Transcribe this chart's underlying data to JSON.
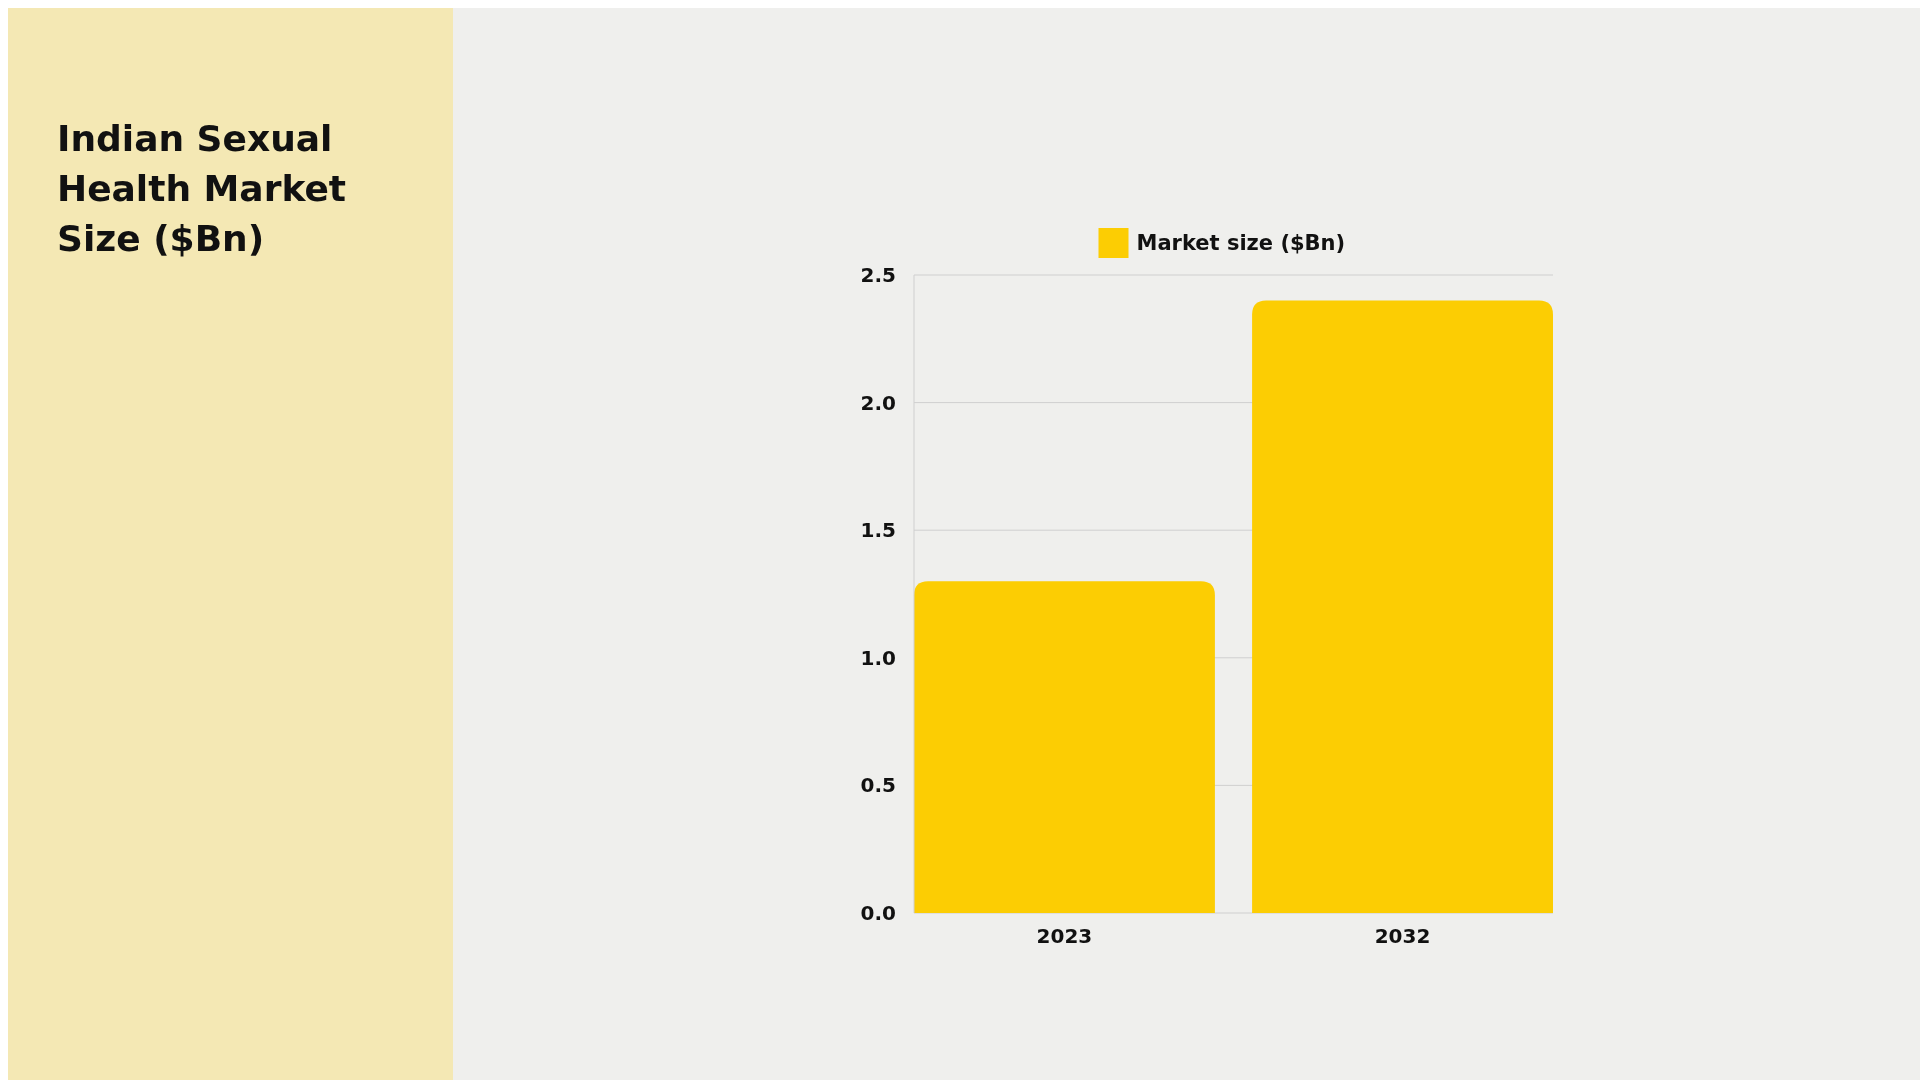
{
  "chart_data": {
    "type": "bar",
    "title": "Indian Sexual Health Market Size ($Bn)",
    "categories": [
      "2023",
      "2032"
    ],
    "series": [
      {
        "name": "Market size ($Bn)",
        "color": "#fccd03",
        "values": [
          1.3,
          2.4
        ]
      }
    ],
    "ylim": [
      0,
      2.5
    ],
    "yticks": [
      {
        "value": 0,
        "label": "0.0"
      },
      {
        "value": 0.5,
        "label": "0.5"
      },
      {
        "value": 1,
        "label": "1.0"
      },
      {
        "value": 1.5,
        "label": "1.5"
      },
      {
        "value": 2,
        "label": "2.0"
      },
      {
        "value": 2.5,
        "label": "2.5"
      }
    ],
    "grid": "y",
    "legend": "top"
  }
}
